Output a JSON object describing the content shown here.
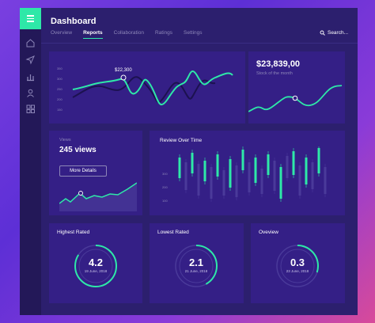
{
  "colors": {
    "accent": "#2ee8a8",
    "panel": "#341f86",
    "background": "#2c1f6e",
    "sidebar": "#231858"
  },
  "header": {
    "title": "Dashboard",
    "tabs": [
      {
        "label": "Overview",
        "active": false
      },
      {
        "label": "Reports",
        "active": true
      },
      {
        "label": "Collaboration",
        "active": false
      },
      {
        "label": "Ratings",
        "active": false
      },
      {
        "label": "Settings",
        "active": false
      }
    ],
    "search_label": "Search..."
  },
  "sidebar": {
    "icons": [
      "home-icon",
      "send-icon",
      "bar-chart-icon",
      "user-icon",
      "grid-icon"
    ]
  },
  "main_chart": {
    "callout": "$22,300",
    "yticks": [
      "350",
      "300",
      "250",
      "200",
      "150"
    ]
  },
  "stock": {
    "value": "$23,839,00",
    "label": "Stock of the month"
  },
  "views": {
    "label": "Views",
    "value": "245 views",
    "button": "More Details"
  },
  "review": {
    "title": "Review Over Time",
    "yticks": [
      "300",
      "200",
      "100"
    ]
  },
  "ratings": [
    {
      "title": "Highest Rated",
      "value": "4.2",
      "date": "19 June, 2018",
      "progress": 0.84
    },
    {
      "title": "Lowest Rated",
      "value": "2.1",
      "date": "21 June, 2018",
      "progress": 0.42
    },
    {
      "title": "Oveview",
      "value": "0.3",
      "date": "23 June, 2018",
      "progress": 0.3
    }
  ]
}
